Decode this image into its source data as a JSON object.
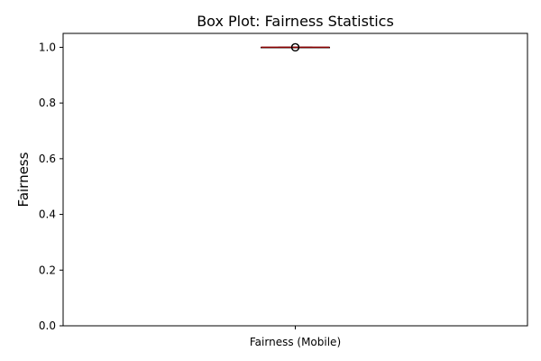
{
  "chart_data": {
    "type": "box",
    "title": "Box Plot: Fairness Statistics",
    "xlabel": "",
    "ylabel": "Fairness",
    "categories": [
      "Fairness (Mobile)"
    ],
    "ylim": [
      0,
      1.05
    ],
    "yticks": [
      "0.0",
      "0.2",
      "0.4",
      "0.6",
      "0.8",
      "1.0"
    ],
    "boxes": [
      {
        "category": "Fairness (Mobile)",
        "whisker_low": 1.0,
        "q1": 1.0,
        "median": 1.0,
        "q3": 1.0,
        "whisker_high": 1.0,
        "outliers": [
          1.0,
          1.0,
          1.0
        ]
      }
    ],
    "colors": {
      "box": "#000000",
      "median": "#8b0000",
      "outlier": "#000000"
    },
    "grid": false,
    "legend": "none"
  }
}
